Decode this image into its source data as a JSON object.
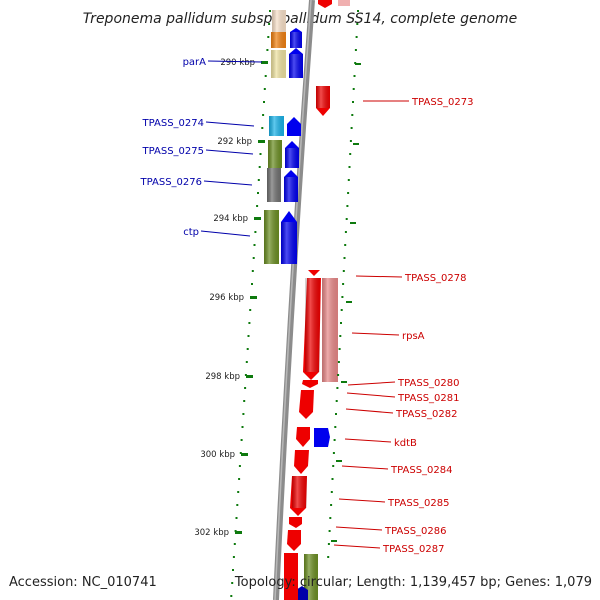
{
  "title": "Treponema pallidum subsp. pallidum SS14, complete genome",
  "footer": {
    "accession": "Accession: NC_010741",
    "topology": "Topology: circular; Length: 1,139,457 bp; Genes: 1,079"
  },
  "colors": {
    "backbone": "#8c8c8c",
    "forward_gene": "#0000ee",
    "reverse_gene": "#ee0000",
    "reverse_gene_light": "#e88888",
    "tick": "#0e7a0e",
    "left_label": "#0000aa",
    "right_label": "#cc0000",
    "cog_green": "#6b8e23",
    "cog_grey": "#707070",
    "cog_cyan": "#1ab2e8",
    "cog_orange": "#f08010",
    "cog_khaki": "#eee2a0",
    "cog_peach": "#f8e0c8",
    "cog_pink": "#f0b0b0"
  },
  "ruler": [
    {
      "label": "290 kbp"
    },
    {
      "label": "292 kbp"
    },
    {
      "label": "294 kbp"
    },
    {
      "label": "296 kbp"
    },
    {
      "label": "298 kbp"
    },
    {
      "label": "300 kbp"
    },
    {
      "label": "302 kbp"
    }
  ],
  "left_labels": [
    "parA",
    "TPASS_0274",
    "TPASS_0275",
    "TPASS_0276",
    "ctp"
  ],
  "right_labels": [
    "TPASS_0273",
    "TPASS_0278",
    "rpsA",
    "TPASS_0280",
    "TPASS_0281",
    "TPASS_0282",
    "kdtB",
    "TPASS_0284",
    "TPASS_0285",
    "TPASS_0286",
    "TPASS_0287"
  ]
}
